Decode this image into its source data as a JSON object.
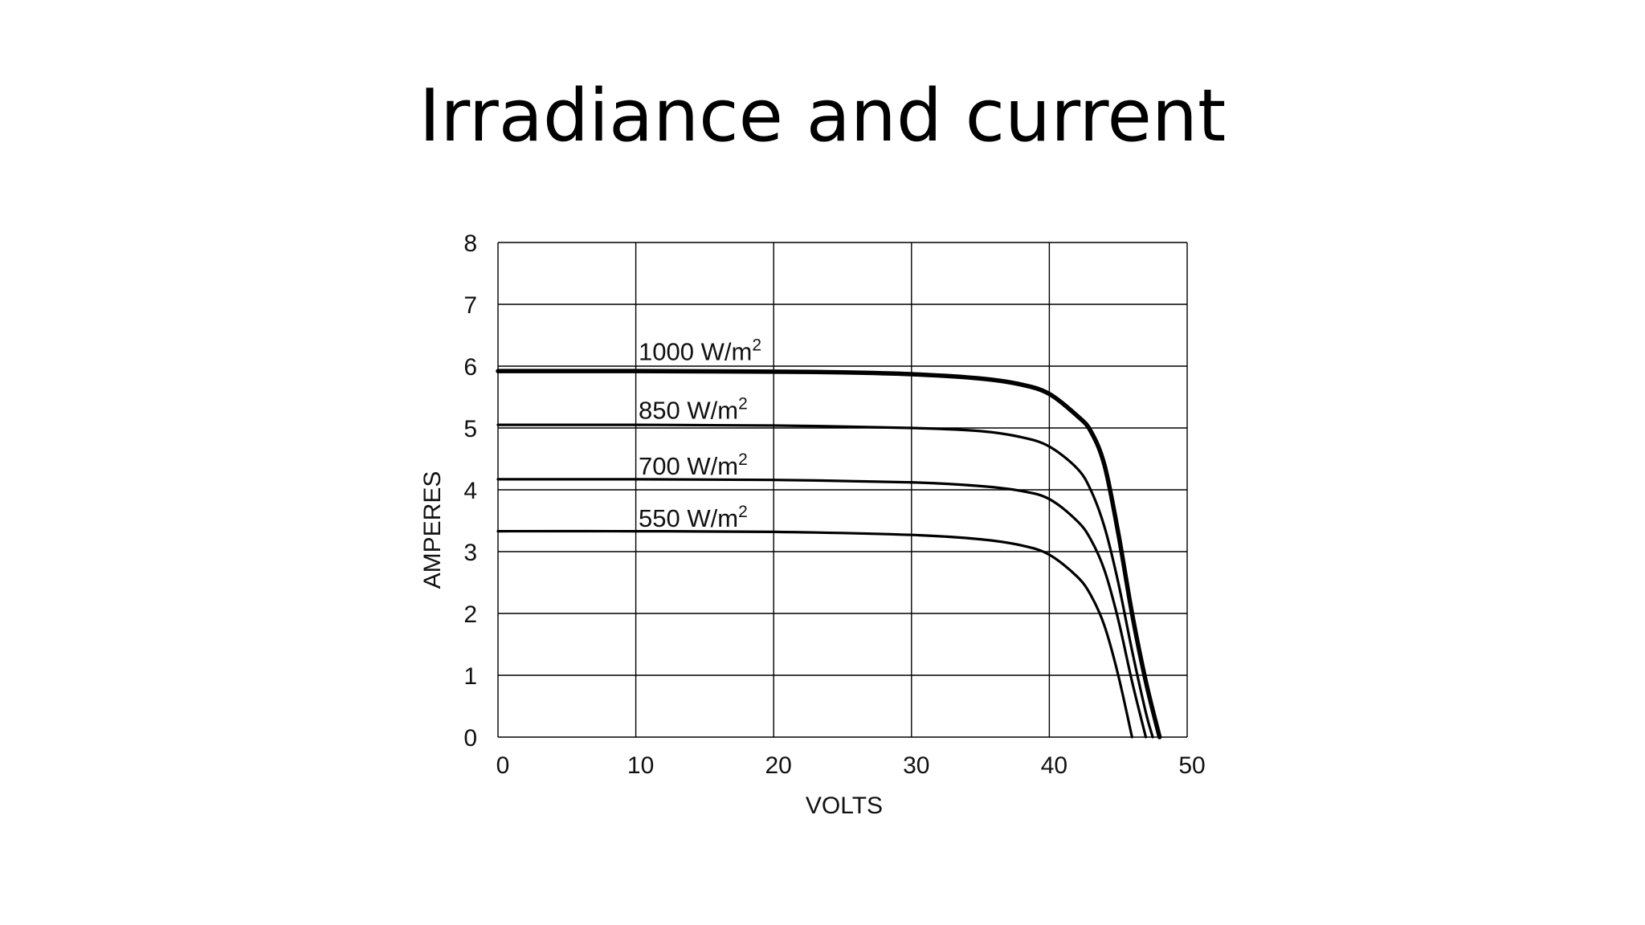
{
  "slide": {
    "title": "Irradiance and current"
  },
  "chart_data": {
    "type": "line",
    "title": "Irradiance and current",
    "xlabel": "VOLTS",
    "ylabel": "AMPERES",
    "xlim": [
      0,
      50
    ],
    "ylim": [
      0,
      8
    ],
    "xticks": [
      0,
      10,
      20,
      30,
      40,
      50
    ],
    "yticks": [
      0,
      1,
      2,
      3,
      4,
      5,
      6,
      7,
      8
    ],
    "grid": true,
    "series": [
      {
        "name": "1000 W/m2",
        "label_main": "1000 W/m",
        "label_sup": "2",
        "label_at": [
          10.2,
          6.1
        ],
        "stroke_weight": "bold",
        "points": [
          [
            0,
            5.92
          ],
          [
            10,
            5.92
          ],
          [
            20,
            5.91
          ],
          [
            25,
            5.9
          ],
          [
            30,
            5.87
          ],
          [
            35,
            5.8
          ],
          [
            38,
            5.7
          ],
          [
            40,
            5.55
          ],
          [
            42,
            5.2
          ],
          [
            43,
            4.95
          ],
          [
            44,
            4.4
          ],
          [
            45,
            3.3
          ],
          [
            46,
            2.0
          ],
          [
            47,
            0.9
          ],
          [
            48,
            0
          ]
        ]
      },
      {
        "name": "850 W/m2",
        "label_main": "850 W/m",
        "label_sup": "2",
        "label_at": [
          10.2,
          5.15
        ],
        "stroke_weight": "normal",
        "points": [
          [
            0,
            5.05
          ],
          [
            10,
            5.05
          ],
          [
            20,
            5.04
          ],
          [
            30,
            5.0
          ],
          [
            35,
            4.95
          ],
          [
            38,
            4.85
          ],
          [
            40,
            4.7
          ],
          [
            42,
            4.35
          ],
          [
            43,
            4.0
          ],
          [
            44,
            3.4
          ],
          [
            45,
            2.5
          ],
          [
            46,
            1.4
          ],
          [
            47,
            0.4
          ],
          [
            47.5,
            0
          ]
        ]
      },
      {
        "name": "700 W/m2",
        "label_main": "700 W/m",
        "label_sup": "2",
        "label_at": [
          10.2,
          4.25
        ],
        "stroke_weight": "normal",
        "points": [
          [
            0,
            4.17
          ],
          [
            10,
            4.17
          ],
          [
            20,
            4.16
          ],
          [
            30,
            4.12
          ],
          [
            35,
            4.06
          ],
          [
            38,
            3.98
          ],
          [
            40,
            3.85
          ],
          [
            42,
            3.5
          ],
          [
            43,
            3.2
          ],
          [
            44,
            2.7
          ],
          [
            45,
            1.9
          ],
          [
            46,
            0.9
          ],
          [
            47,
            0
          ]
        ]
      },
      {
        "name": "550 W/m2",
        "label_main": "550 W/m",
        "label_sup": "2",
        "label_at": [
          10.2,
          3.4
        ],
        "stroke_weight": "normal",
        "points": [
          [
            0,
            3.33
          ],
          [
            10,
            3.33
          ],
          [
            20,
            3.32
          ],
          [
            30,
            3.27
          ],
          [
            35,
            3.2
          ],
          [
            38,
            3.1
          ],
          [
            40,
            2.95
          ],
          [
            42,
            2.6
          ],
          [
            43,
            2.3
          ],
          [
            44,
            1.8
          ],
          [
            45,
            1.0
          ],
          [
            46,
            0
          ]
        ]
      }
    ]
  }
}
